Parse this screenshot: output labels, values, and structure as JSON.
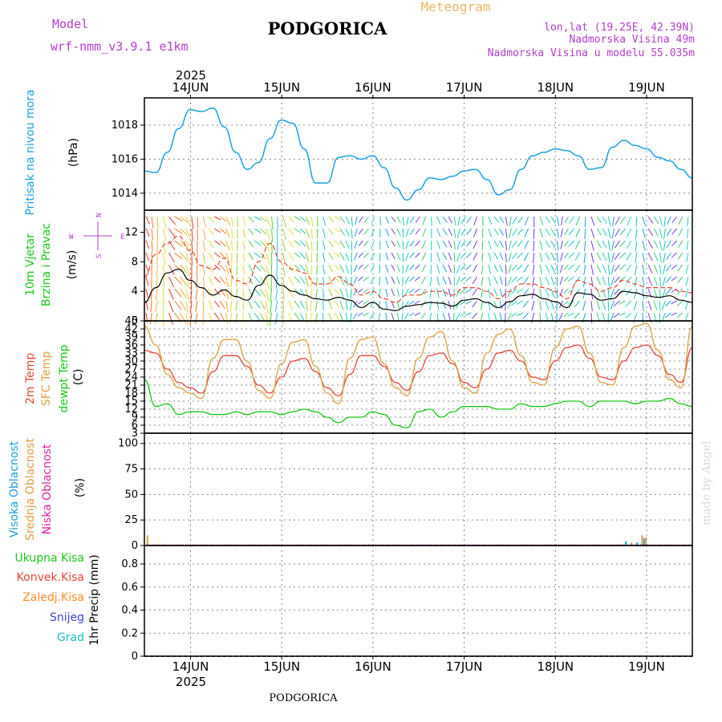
{
  "header": {
    "model_label": "Model",
    "model_name": "wrf-nmm_v3.9.1  e1km",
    "title": "PODGORICA",
    "meteogram": "Meteogram",
    "lonlat": "lon,lat (19.25E, 42.39N)",
    "alt1": "Nadmorska Visina 49m",
    "alt2": "Nadmorska Visina u modelu 55.035m"
  },
  "footer": {
    "station": "PODGORICA",
    "credit": "made by Angel",
    "year": "2025"
  },
  "dates": [
    "14JUN",
    "15JUN",
    "16JUN",
    "17JUN",
    "18JUN",
    "19JUN"
  ],
  "colors": {
    "pressure": "#1ba1e2",
    "wind_speed": "#000000",
    "gust": "#e8422c",
    "temp2m": "#e8463c",
    "sfc_temp": "#e0a040",
    "dewpoint": "#19c819",
    "cloud_high": "#1ba1e2",
    "cloud_mid": "#e0a040",
    "cloud_low": "#e020a0",
    "rain_total": "#19c819",
    "rain_conv": "#e8463c",
    "rain_frozen": "#ff8c28",
    "snow": "#4040e0",
    "hail": "#20c0c0"
  },
  "panels": {
    "pressure": {
      "label1": "Pritisak na nivou mora",
      "unit": "(hPa)",
      "ticks": [
        "1014",
        "1016",
        "1018"
      ]
    },
    "wind": {
      "label1": "10m Vjetar",
      "label2": "Brzina i Pravac",
      "unit": "(m/s)",
      "ticks": [
        "0",
        "4",
        "8",
        "12"
      ],
      "compass": {
        "n": "N",
        "s": "S",
        "w": "W",
        "e": "E"
      }
    },
    "temp": {
      "label1": "2m Temp",
      "label2": "SFC Temp",
      "label3": "dewpt Temp",
      "unit": "(C)",
      "ticks": [
        "3",
        "6",
        "9",
        "12",
        "15",
        "18",
        "21",
        "24",
        "27",
        "30",
        "33",
        "36",
        "39",
        "42",
        "45"
      ]
    },
    "cloud": {
      "label1": "Visoka Oblacnost",
      "label2": "Srednja Oblacnost",
      "label3": "Niska Oblacnost",
      "unit": "(%)",
      "ticks": [
        "0",
        "25",
        "50",
        "75",
        "100"
      ]
    },
    "precip": {
      "legend": [
        "Ukupna  Kisa",
        "Konvek.Kisa",
        "Zaledj.Kisa",
        "Snijeg",
        "Grad"
      ],
      "unit": "1hr Precip (mm)",
      "ticks": [
        "0",
        "0.2",
        "0.4",
        "0.6",
        "0.8"
      ]
    }
  },
  "chart_data": [
    {
      "type": "line",
      "title": "Pritisak na nivou mora",
      "ylabel": "(hPa)",
      "ylim": [
        1013,
        1019.6
      ],
      "x_hours": [
        0,
        3,
        6,
        9,
        12,
        15,
        18,
        21,
        24,
        27,
        30,
        33,
        36,
        39,
        42,
        45,
        48,
        51,
        54,
        57,
        60,
        63,
        66,
        69,
        72,
        75,
        78,
        81,
        84,
        87,
        90,
        93,
        96,
        99,
        102,
        105,
        108,
        111,
        114,
        117,
        120,
        123,
        126,
        129,
        132,
        135,
        138,
        141,
        144
      ],
      "series": [
        {
          "values": [
            1015.3,
            1015.2,
            1016.4,
            1017.8,
            1018.9,
            1018.8,
            1019.0,
            1017.9,
            1016.4,
            1015.4,
            1015.8,
            1017.2,
            1018.3,
            1018.1,
            1016.6,
            1014.6,
            1014.6,
            1016.1,
            1016.2,
            1016.0,
            1016.2,
            1015.5,
            1014.3,
            1013.6,
            1014.2,
            1014.9,
            1014.8,
            1015.0,
            1015.3,
            1015.4,
            1014.8,
            1013.9,
            1014.2,
            1015.4,
            1016.2,
            1016.4,
            1016.6,
            1016.5,
            1016.2,
            1015.4,
            1015.5,
            1016.7,
            1017.1,
            1016.8,
            1016.6,
            1016.1,
            1015.9,
            1015.4,
            1014.9
          ]
        }
      ]
    },
    {
      "type": "line",
      "title": "10m Vjetar Brzina i Pravac",
      "ylabel": "(m/s)",
      "ylim": [
        0,
        15
      ],
      "x_hours": [
        0,
        3,
        6,
        9,
        12,
        15,
        18,
        21,
        24,
        27,
        30,
        33,
        36,
        39,
        42,
        45,
        48,
        51,
        54,
        57,
        60,
        63,
        66,
        69,
        72,
        75,
        78,
        81,
        84,
        87,
        90,
        93,
        96,
        99,
        102,
        105,
        108,
        111,
        114,
        117,
        120,
        123,
        126,
        129,
        132,
        135,
        138,
        141,
        144
      ],
      "series": [
        {
          "values": [
            2.5,
            4.5,
            6.5,
            7.0,
            5.5,
            4.5,
            3.5,
            4.2,
            3.3,
            2.8,
            4.8,
            6.2,
            4.8,
            4.0,
            3.5,
            3.0,
            2.8,
            3.2,
            2.8,
            1.8,
            2.5,
            1.6,
            1.4,
            2.0,
            2.2,
            2.5,
            2.4,
            2.0,
            2.8,
            3.0,
            2.5,
            1.8,
            2.6,
            3.4,
            3.6,
            3.0,
            2.6,
            1.8,
            3.8,
            3.6,
            2.8,
            3.0,
            4.0,
            3.8,
            3.4,
            3.2,
            3.4,
            2.8,
            2.5
          ]
        },
        {
          "values": [
            6,
            9,
            10.5,
            11.5,
            9.5,
            7.5,
            7,
            8.5,
            5.5,
            5,
            8,
            10.5,
            8,
            7,
            6.5,
            5,
            5,
            6,
            5,
            3.5,
            4,
            3,
            2.5,
            3.5,
            3.5,
            4,
            4,
            3.5,
            4.5,
            4.5,
            4,
            3,
            4,
            5,
            5,
            4.5,
            4,
            3,
            5.5,
            5,
            4,
            4.5,
            5.5,
            5,
            4.5,
            4.5,
            4.5,
            4,
            3.8
          ]
        }
      ]
    },
    {
      "type": "line",
      "title": "2m Temp / SFC Temp / dewpt Temp",
      "ylabel": "(C)",
      "ylim": [
        3,
        45
      ],
      "x_hours": [
        0,
        3,
        6,
        9,
        12,
        15,
        18,
        21,
        24,
        27,
        30,
        33,
        36,
        39,
        42,
        45,
        48,
        51,
        54,
        57,
        60,
        63,
        66,
        69,
        72,
        75,
        78,
        81,
        84,
        87,
        90,
        93,
        96,
        99,
        102,
        105,
        108,
        111,
        114,
        117,
        120,
        123,
        126,
        129,
        132,
        135,
        138,
        141,
        144
      ],
      "series": [
        {
          "name": "2m Temp",
          "values": [
            34,
            33,
            27,
            22,
            20,
            18,
            26,
            32,
            32,
            28,
            21,
            18,
            24,
            30,
            31,
            26,
            20,
            17,
            25,
            32,
            32,
            28,
            22,
            19,
            26,
            32,
            33,
            29,
            22,
            20,
            27,
            33,
            34,
            30,
            24,
            23,
            30,
            35,
            36,
            31,
            24,
            23,
            30,
            35,
            36,
            32,
            25,
            22,
            35
          ]
        },
        {
          "name": "SFC Temp",
          "values": [
            43,
            36,
            25,
            20,
            18,
            16,
            31,
            38,
            38,
            30,
            19,
            16,
            29,
            37,
            38,
            28,
            18,
            14,
            31,
            38,
            39,
            29,
            20,
            17,
            31,
            39,
            41,
            30,
            20,
            18,
            33,
            40,
            42,
            32,
            22,
            21,
            35,
            42,
            43,
            33,
            22,
            21,
            35,
            43,
            44,
            34,
            23,
            20,
            43
          ]
        },
        {
          "name": "dewpt Temp",
          "values": [
            23,
            13,
            14,
            10,
            11,
            11,
            10,
            10,
            11,
            10,
            11,
            11,
            10,
            11,
            12,
            11,
            9,
            7,
            9,
            9,
            11,
            10,
            6,
            5,
            11,
            12,
            9,
            11,
            13,
            13,
            13,
            12,
            12,
            14,
            13,
            13,
            14,
            15,
            15,
            13,
            15,
            15,
            15,
            14,
            15,
            15,
            16,
            14,
            13
          ]
        }
      ]
    },
    {
      "type": "bar",
      "title": "Visoka / Srednja / Niska Oblacnost",
      "ylabel": "(%)",
      "ylim": [
        0,
        110
      ],
      "series": [
        {
          "name": "Visoka Oblacnost",
          "x_hours": [
            126.5,
            129.5,
            131.3
          ],
          "values": [
            4,
            3,
            7
          ]
        },
        {
          "name": "Srednja Oblacnost",
          "x_hours": [
            0.8,
            128,
            130.8,
            131.8
          ],
          "values": [
            10,
            3,
            10,
            8
          ]
        },
        {
          "name": "Niska Oblacnost",
          "x_hours": [],
          "values": []
        }
      ]
    },
    {
      "type": "bar",
      "title": "1hr Precip",
      "ylabel": "1hr Precip (mm)",
      "ylim": [
        0,
        0.96
      ],
      "series": [
        {
          "name": "Ukupna  Kisa",
          "values": []
        },
        {
          "name": "Konvek.Kisa",
          "values": []
        },
        {
          "name": "Zaledj.Kisa",
          "values": []
        },
        {
          "name": "Snijeg",
          "values": []
        },
        {
          "name": "Grad",
          "values": []
        }
      ]
    }
  ]
}
